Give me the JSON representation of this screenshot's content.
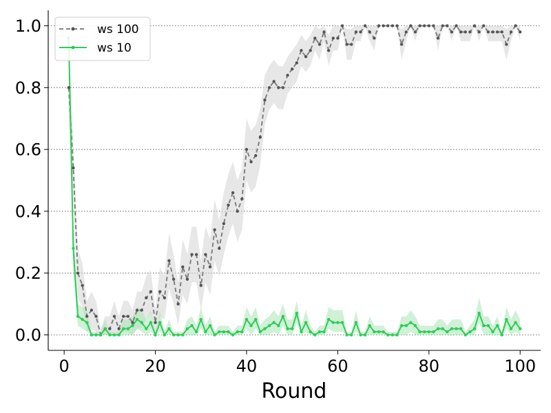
{
  "chart_data": {
    "type": "line",
    "xlabel": "Round",
    "ylabel": "",
    "xlim": [
      -3.5,
      104.5
    ],
    "ylim": [
      -0.05,
      1.05
    ],
    "x_ticks": [
      0,
      20,
      40,
      60,
      80,
      100
    ],
    "x_tick_labels": [
      "0",
      "20",
      "40",
      "60",
      "80",
      "100"
    ],
    "y_ticks": [
      0.0,
      0.2,
      0.4,
      0.6,
      0.8,
      1.0
    ],
    "y_tick_labels": [
      "0.0",
      "0.2",
      "0.4",
      "0.6",
      "0.8",
      "1.0"
    ],
    "grid": "horizontal dotted",
    "legend_position": "upper-left",
    "x": [
      1,
      2,
      3,
      4,
      5,
      6,
      7,
      8,
      9,
      10,
      11,
      12,
      13,
      14,
      15,
      16,
      17,
      18,
      19,
      20,
      21,
      22,
      23,
      24,
      25,
      26,
      27,
      28,
      29,
      30,
      31,
      32,
      33,
      34,
      35,
      36,
      37,
      38,
      39,
      40,
      41,
      42,
      43,
      44,
      45,
      46,
      47,
      48,
      49,
      50,
      51,
      52,
      53,
      54,
      55,
      56,
      57,
      58,
      59,
      60,
      61,
      62,
      63,
      64,
      65,
      66,
      67,
      68,
      69,
      70,
      71,
      72,
      73,
      74,
      75,
      76,
      77,
      78,
      79,
      80,
      81,
      82,
      83,
      84,
      85,
      86,
      87,
      88,
      89,
      90,
      91,
      92,
      93,
      94,
      95,
      96,
      97,
      98,
      99,
      100
    ],
    "series": [
      {
        "name": "ws 100",
        "color": "#808080",
        "band_color": "#d3d3d3",
        "line_style": "dashed",
        "marker": "dot",
        "values": [
          0.8,
          0.54,
          0.2,
          0.16,
          0.06,
          0.08,
          0.06,
          0.0,
          0.02,
          0.02,
          0.06,
          0.02,
          0.06,
          0.06,
          0.04,
          0.08,
          0.08,
          0.12,
          0.14,
          0.04,
          0.14,
          0.12,
          0.24,
          0.18,
          0.1,
          0.22,
          0.18,
          0.26,
          0.26,
          0.16,
          0.26,
          0.22,
          0.34,
          0.28,
          0.36,
          0.42,
          0.46,
          0.4,
          0.44,
          0.6,
          0.56,
          0.58,
          0.64,
          0.76,
          0.8,
          0.82,
          0.8,
          0.8,
          0.84,
          0.86,
          0.88,
          0.92,
          0.9,
          0.92,
          0.96,
          0.94,
          0.98,
          0.92,
          0.96,
          0.96,
          1.0,
          0.94,
          0.94,
          0.98,
          0.98,
          1.0,
          0.98,
          0.96,
          1.0,
          1.0,
          1.0,
          1.0,
          1.0,
          0.94,
          0.98,
          1.0,
          0.98,
          1.0,
          1.0,
          1.0,
          1.0,
          0.96,
          1.0,
          1.0,
          0.98,
          1.0,
          0.98,
          0.98,
          0.98,
          1.0,
          0.98,
          1.0,
          0.98,
          0.98,
          0.98,
          0.98,
          0.94,
          0.98,
          1.0,
          0.98
        ],
        "lower": [
          0.7,
          0.46,
          0.12,
          0.09,
          0.01,
          0.02,
          0.01,
          0.0,
          0.0,
          0.0,
          0.01,
          0.0,
          0.01,
          0.01,
          0.0,
          0.02,
          0.02,
          0.05,
          0.07,
          0.0,
          0.06,
          0.05,
          0.15,
          0.1,
          0.03,
          0.13,
          0.1,
          0.17,
          0.17,
          0.08,
          0.17,
          0.13,
          0.24,
          0.19,
          0.26,
          0.32,
          0.36,
          0.3,
          0.34,
          0.5,
          0.46,
          0.48,
          0.55,
          0.68,
          0.73,
          0.75,
          0.73,
          0.73,
          0.78,
          0.8,
          0.82,
          0.87,
          0.85,
          0.87,
          0.92,
          0.89,
          0.95,
          0.87,
          0.92,
          0.92,
          1.0,
          0.89,
          0.89,
          0.95,
          0.95,
          1.0,
          0.95,
          0.92,
          1.0,
          1.0,
          1.0,
          1.0,
          1.0,
          0.89,
          0.95,
          1.0,
          0.95,
          1.0,
          1.0,
          1.0,
          1.0,
          0.92,
          1.0,
          1.0,
          0.95,
          1.0,
          0.95,
          0.95,
          0.95,
          1.0,
          0.95,
          1.0,
          0.95,
          0.95,
          0.95,
          0.95,
          0.89,
          0.95,
          1.0,
          0.95
        ],
        "upper": [
          0.9,
          0.62,
          0.28,
          0.23,
          0.11,
          0.14,
          0.11,
          0.02,
          0.06,
          0.06,
          0.11,
          0.06,
          0.11,
          0.11,
          0.08,
          0.14,
          0.14,
          0.19,
          0.21,
          0.08,
          0.22,
          0.19,
          0.33,
          0.26,
          0.17,
          0.31,
          0.26,
          0.35,
          0.35,
          0.24,
          0.35,
          0.31,
          0.44,
          0.37,
          0.46,
          0.52,
          0.56,
          0.5,
          0.54,
          0.7,
          0.66,
          0.68,
          0.73,
          0.84,
          0.87,
          0.89,
          0.87,
          0.87,
          0.9,
          0.92,
          0.94,
          0.97,
          0.95,
          0.97,
          1.0,
          0.99,
          1.0,
          0.97,
          1.0,
          1.0,
          1.0,
          0.99,
          0.99,
          1.0,
          1.0,
          1.0,
          1.0,
          1.0,
          1.0,
          1.0,
          1.0,
          1.0,
          1.0,
          0.99,
          1.0,
          1.0,
          1.0,
          1.0,
          1.0,
          1.0,
          1.0,
          1.0,
          1.0,
          1.0,
          1.0,
          1.0,
          1.0,
          1.0,
          1.0,
          1.0,
          1.0,
          1.0,
          1.0,
          1.0,
          1.0,
          1.0,
          0.99,
          1.0,
          1.0,
          1.0
        ]
      },
      {
        "name": "ws 10",
        "color": "#2ecc57",
        "band_color": "#a8e6b4",
        "line_style": "solid",
        "marker": "dot",
        "values": [
          0.96,
          0.28,
          0.06,
          0.05,
          0.04,
          0.0,
          0.0,
          0.0,
          0.02,
          0.0,
          0.0,
          0.0,
          0.02,
          0.02,
          0.03,
          0.05,
          0.04,
          0.02,
          0.04,
          0.0,
          0.04,
          0.0,
          0.02,
          0.0,
          0.0,
          0.0,
          0.02,
          0.03,
          0.01,
          0.05,
          0.01,
          0.03,
          0.0,
          0.01,
          0.01,
          0.01,
          0.0,
          0.01,
          0.01,
          0.05,
          0.03,
          0.05,
          0.01,
          0.02,
          0.03,
          0.04,
          0.03,
          0.06,
          0.02,
          0.02,
          0.07,
          0.01,
          0.04,
          0.01,
          0.0,
          0.01,
          0.01,
          0.05,
          0.04,
          0.04,
          0.04,
          0.0,
          0.0,
          0.04,
          0.0,
          0.0,
          0.03,
          0.01,
          0.01,
          0.01,
          0.0,
          0.0,
          0.0,
          0.03,
          0.03,
          0.04,
          0.03,
          0.01,
          0.01,
          0.01,
          0.01,
          0.02,
          0.02,
          0.01,
          0.02,
          0.02,
          0.02,
          0.0,
          0.01,
          0.02,
          0.07,
          0.03,
          0.03,
          0.01,
          0.03,
          0.0,
          0.05,
          0.02,
          0.04,
          0.02
        ],
        "lower": [
          0.9,
          0.2,
          0.03,
          0.02,
          0.01,
          0.0,
          0.0,
          0.0,
          0.0,
          0.0,
          0.0,
          0.0,
          0.0,
          0.0,
          0.0,
          0.02,
          0.01,
          0.0,
          0.01,
          0.0,
          0.01,
          0.0,
          0.0,
          0.0,
          0.0,
          0.0,
          0.0,
          0.0,
          0.0,
          0.02,
          0.0,
          0.0,
          0.0,
          0.0,
          0.0,
          0.0,
          0.0,
          0.0,
          0.0,
          0.02,
          0.0,
          0.02,
          0.0,
          0.0,
          0.0,
          0.01,
          0.0,
          0.03,
          0.0,
          0.0,
          0.04,
          0.0,
          0.01,
          0.0,
          0.0,
          0.0,
          0.0,
          0.02,
          0.01,
          0.01,
          0.01,
          0.0,
          0.0,
          0.01,
          0.0,
          0.0,
          0.0,
          0.0,
          0.0,
          0.0,
          0.0,
          0.0,
          0.0,
          0.0,
          0.0,
          0.01,
          0.0,
          0.0,
          0.0,
          0.0,
          0.0,
          0.0,
          0.0,
          0.0,
          0.0,
          0.0,
          0.0,
          0.0,
          0.0,
          0.0,
          0.04,
          0.0,
          0.0,
          0.0,
          0.0,
          0.0,
          0.02,
          0.0,
          0.01,
          0.0
        ],
        "upper": [
          1.0,
          0.36,
          0.1,
          0.09,
          0.08,
          0.01,
          0.01,
          0.01,
          0.05,
          0.01,
          0.01,
          0.01,
          0.05,
          0.05,
          0.06,
          0.09,
          0.08,
          0.05,
          0.08,
          0.01,
          0.08,
          0.01,
          0.05,
          0.01,
          0.01,
          0.01,
          0.05,
          0.06,
          0.03,
          0.09,
          0.03,
          0.06,
          0.01,
          0.03,
          0.03,
          0.03,
          0.01,
          0.03,
          0.03,
          0.09,
          0.06,
          0.09,
          0.03,
          0.05,
          0.06,
          0.08,
          0.06,
          0.1,
          0.05,
          0.05,
          0.11,
          0.03,
          0.08,
          0.03,
          0.01,
          0.03,
          0.03,
          0.09,
          0.08,
          0.08,
          0.08,
          0.01,
          0.01,
          0.08,
          0.01,
          0.01,
          0.06,
          0.03,
          0.03,
          0.03,
          0.01,
          0.01,
          0.01,
          0.06,
          0.06,
          0.08,
          0.06,
          0.03,
          0.03,
          0.03,
          0.03,
          0.05,
          0.05,
          0.03,
          0.05,
          0.05,
          0.05,
          0.01,
          0.03,
          0.05,
          0.12,
          0.06,
          0.06,
          0.03,
          0.06,
          0.01,
          0.09,
          0.05,
          0.08,
          0.05
        ]
      }
    ]
  }
}
